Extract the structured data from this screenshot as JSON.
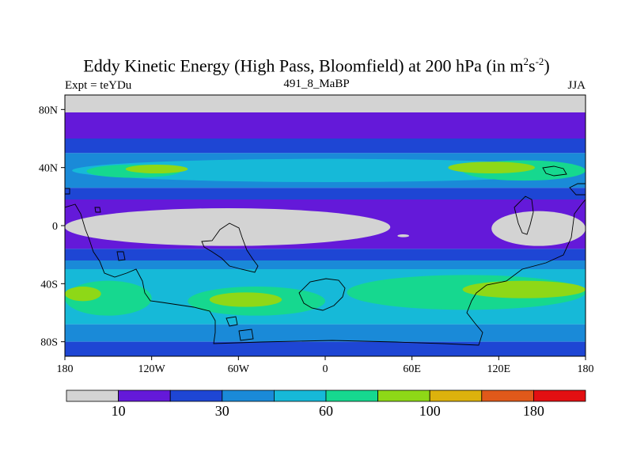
{
  "chart_data": {
    "type": "heatmap",
    "title": {
      "main": "Eddy Kinetic Energy (High Pass, Bloomfield) at 200 hPa (in m",
      "sup1": "2",
      "mid": "s",
      "sup2": "-2",
      "close": ")"
    },
    "subtitle_left": "Expt = teYDu",
    "subtitle_center": "491_8_MaBP",
    "subtitle_right": "JJA",
    "variable": "Eddy Kinetic Energy",
    "units": "m2 s-2",
    "level": "200 hPa",
    "season": "JJA",
    "x_ticks": [
      {
        "value": -180,
        "label": "180"
      },
      {
        "value": -120,
        "label": "120W"
      },
      {
        "value": -60,
        "label": "60W"
      },
      {
        "value": 0,
        "label": "0"
      },
      {
        "value": 60,
        "label": "60E"
      },
      {
        "value": 120,
        "label": "120E"
      },
      {
        "value": 180,
        "label": "180"
      }
    ],
    "y_ticks": [
      {
        "value": 80,
        "label": "80N"
      },
      {
        "value": 40,
        "label": "40N"
      },
      {
        "value": 0,
        "label": "0"
      },
      {
        "value": -40,
        "label": "40S"
      },
      {
        "value": -80,
        "label": "80S"
      }
    ],
    "xlim": [
      -180,
      180
    ],
    "ylim": [
      -90,
      90
    ],
    "levels": [
      0,
      10,
      20,
      30,
      45,
      60,
      80,
      100,
      140,
      180,
      220
    ],
    "colorbar": {
      "colors": [
        "#d3d3d3",
        "#6419d9",
        "#1e46d4",
        "#1a8ad8",
        "#16b9d8",
        "#16d88f",
        "#8ed817",
        "#dcb20d",
        "#e0591a",
        "#e30f12"
      ],
      "labels": [
        {
          "boundary": 1,
          "text": "10"
        },
        {
          "boundary": 3,
          "text": "30"
        },
        {
          "boundary": 5,
          "text": "60"
        },
        {
          "boundary": 7,
          "text": "100"
        },
        {
          "boundary": 9,
          "text": "180"
        }
      ]
    },
    "bands": [
      {
        "lat_range": [
          78,
          90
        ],
        "level_bin": 0
      },
      {
        "lat_range": [
          60,
          78
        ],
        "level_bin": 1
      },
      {
        "lat_range": [
          50,
          60
        ],
        "level_bin": 2
      },
      {
        "lat_range": [
          26,
          50
        ],
        "level_bin": 3
      },
      {
        "lat_range": [
          18,
          26
        ],
        "level_bin": 2
      },
      {
        "lat_range": [
          -16,
          18
        ],
        "level_bin": 1
      },
      {
        "lat_range": [
          -24,
          -16
        ],
        "level_bin": 2
      },
      {
        "lat_range": [
          -30,
          -24
        ],
        "level_bin": 3
      },
      {
        "lat_range": [
          -68,
          -30
        ],
        "level_bin": 4
      },
      {
        "lat_range": [
          -80,
          -68
        ],
        "level_bin": 3
      },
      {
        "lat_range": [
          -90,
          -80
        ],
        "level_bin": 2
      }
    ],
    "features": [
      {
        "name": "nh-storm-track-core",
        "level_bin": 4,
        "lon": [
          -175,
          180
        ],
        "lat": [
          30,
          46
        ]
      },
      {
        "name": "nh-pacific-max",
        "level_bin": 5,
        "lon": [
          95,
          180
        ],
        "lat": [
          31,
          45
        ]
      },
      {
        "name": "nh-atlantic-max",
        "level_bin": 5,
        "lon": [
          -165,
          -100
        ],
        "lat": [
          33,
          42
        ]
      },
      {
        "name": "nh-pacific-peak",
        "level_bin": 6,
        "lon": [
          85,
          145
        ],
        "lat": [
          36,
          44
        ]
      },
      {
        "name": "nh-atlantic-peak",
        "level_bin": 6,
        "lon": [
          -138,
          -95
        ],
        "lat": [
          36,
          42
        ]
      },
      {
        "name": "sh-max-west",
        "level_bin": 5,
        "lon": [
          -180,
          -120
        ],
        "lat": [
          -62,
          -38
        ]
      },
      {
        "name": "sh-max-atlantic",
        "level_bin": 5,
        "lon": [
          -95,
          0
        ],
        "lat": [
          -62,
          -42
        ]
      },
      {
        "name": "sh-max-indian",
        "level_bin": 5,
        "lon": [
          15,
          180
        ],
        "lat": [
          -58,
          -34
        ]
      },
      {
        "name": "sh-peak-west",
        "level_bin": 6,
        "lon": [
          -180,
          -155
        ],
        "lat": [
          -52,
          -42
        ]
      },
      {
        "name": "sh-peak-atlantic",
        "level_bin": 6,
        "lon": [
          -80,
          -30
        ],
        "lat": [
          -56,
          -46
        ]
      },
      {
        "name": "sh-peak-indian",
        "level_bin": 6,
        "lon": [
          95,
          180
        ],
        "lat": [
          -50,
          -38
        ]
      },
      {
        "name": "tropical-low-west",
        "level_bin": 0,
        "lon": [
          -180,
          45
        ],
        "lat": [
          -14,
          12
        ]
      },
      {
        "name": "tropical-low-east",
        "level_bin": 0,
        "lon": [
          115,
          180
        ],
        "lat": [
          -14,
          10
        ]
      },
      {
        "name": "tropical-low-gap",
        "level_bin": 0,
        "lon": [
          50,
          58
        ],
        "lat": [
          -8,
          -6
        ]
      }
    ]
  }
}
